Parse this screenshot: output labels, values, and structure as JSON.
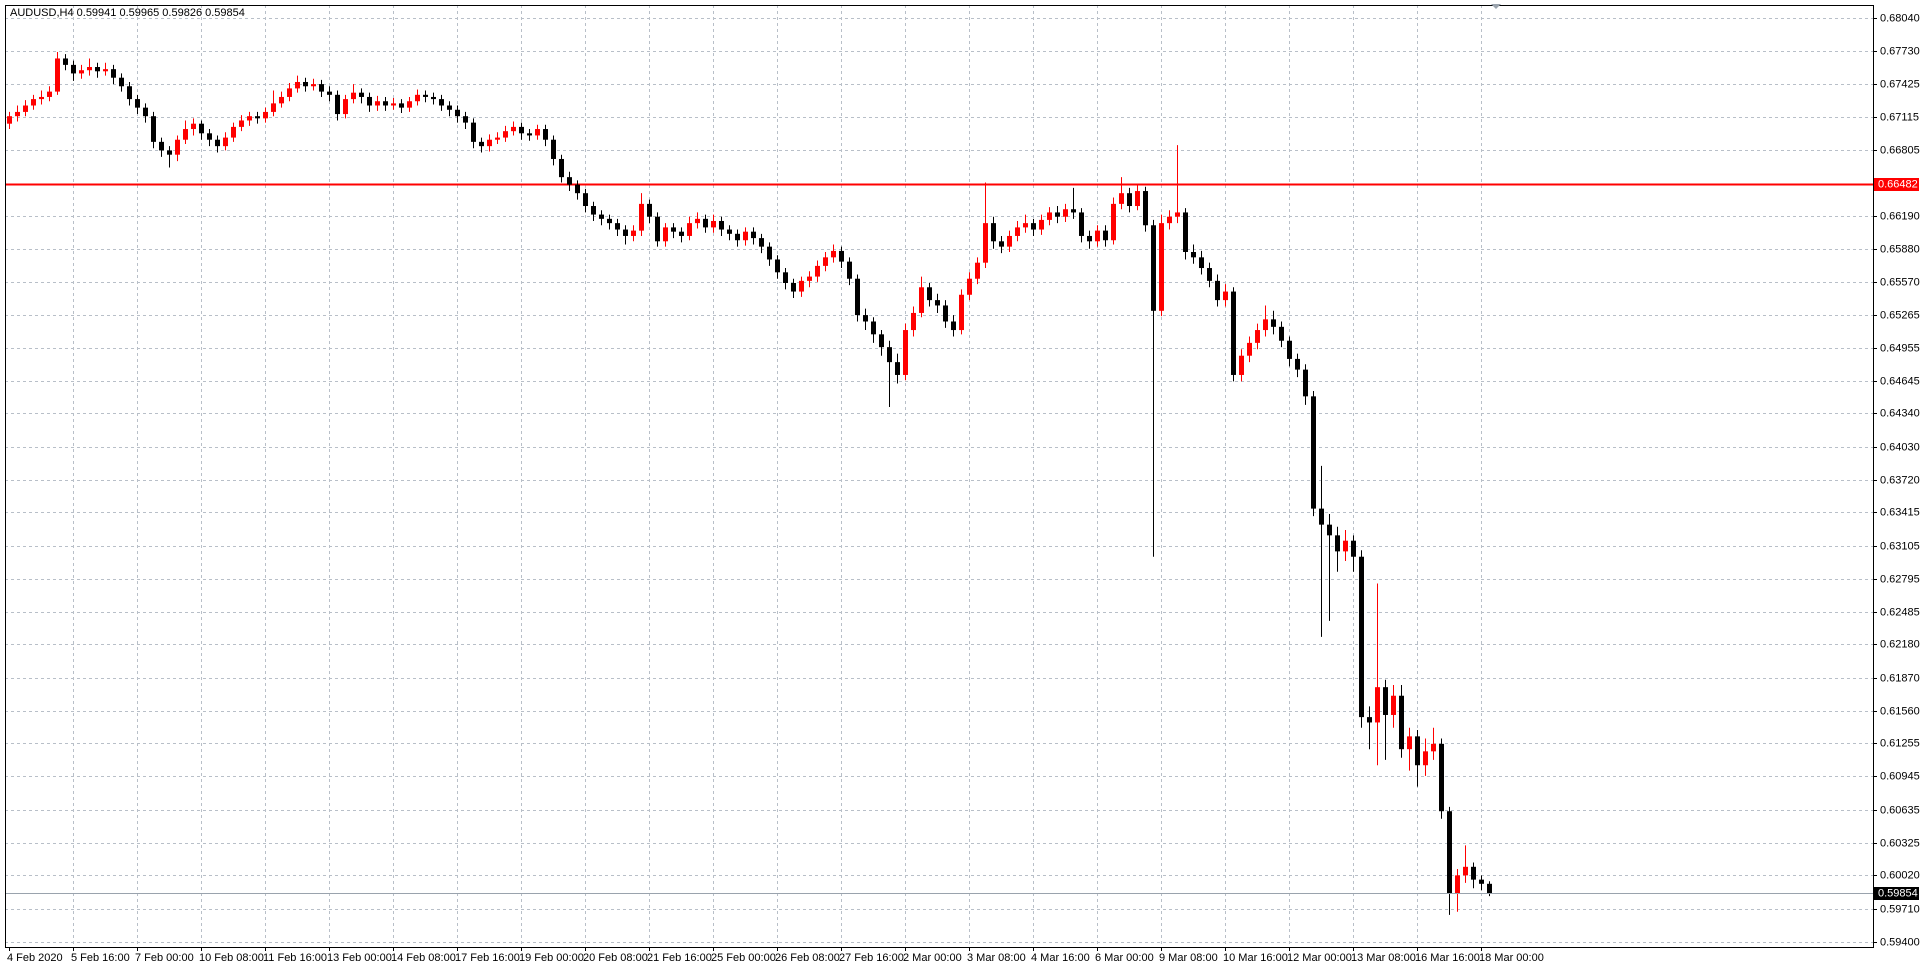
{
  "chart_data": {
    "type": "candlestick",
    "symbol": "AUDUSD,H4",
    "up_color": "#ff0000",
    "down_color": "#000000",
    "grid": true,
    "ylim": [
      0.5935,
      0.6816
    ],
    "yticks": [
      {
        "value": 0.6804,
        "label": "0.68040"
      },
      {
        "value": 0.6773,
        "label": "0.67730"
      },
      0.67425,
      0.67115,
      0.66805,
      {
        "value": 0.6619,
        "label": "0.66190"
      },
      {
        "value": 0.6588,
        "label": "0.65880"
      },
      {
        "value": 0.6557,
        "label": "0.65570"
      },
      0.65265,
      0.64955,
      0.64645,
      {
        "value": 0.6434,
        "label": "0.64340"
      },
      {
        "value": 0.6403,
        "label": "0.64030"
      },
      {
        "value": 0.6372,
        "label": "0.63720"
      },
      0.63415,
      0.63105,
      0.62795,
      0.62485,
      {
        "value": 0.6218,
        "label": "0.62180"
      },
      {
        "value": 0.6187,
        "label": "0.61870"
      },
      {
        "value": 0.6156,
        "label": "0.61560"
      },
      0.61255,
      0.60945,
      0.60635,
      0.60325,
      {
        "value": 0.6002,
        "label": "0.60020"
      },
      {
        "value": 0.5971,
        "label": "0.59710"
      },
      {
        "value": 0.594,
        "label": "0.59400"
      }
    ],
    "hline": {
      "value": 0.66482,
      "color": "#ff0000"
    },
    "categories": [
      "4 Feb 2020",
      null,
      null,
      null,
      null,
      null,
      null,
      null,
      "5 Feb 16:00",
      null,
      null,
      null,
      null,
      null,
      null,
      null,
      "7 Feb 00:00",
      null,
      null,
      null,
      null,
      null,
      null,
      null,
      "10 Feb 08:00",
      null,
      null,
      null,
      null,
      null,
      null,
      null,
      "11 Feb 16:00",
      null,
      null,
      null,
      null,
      null,
      null,
      null,
      "13 Feb 00:00",
      null,
      null,
      null,
      null,
      null,
      null,
      null,
      "14 Feb 08:00",
      null,
      null,
      null,
      null,
      null,
      null,
      null,
      "17 Feb 16:00",
      null,
      null,
      null,
      null,
      null,
      null,
      null,
      "19 Feb 00:00",
      null,
      null,
      null,
      null,
      null,
      null,
      null,
      "20 Feb 08:00",
      null,
      null,
      null,
      null,
      null,
      null,
      null,
      "21 Feb 16:00",
      null,
      null,
      null,
      null,
      null,
      null,
      null,
      "25 Feb 00:00",
      null,
      null,
      null,
      null,
      null,
      null,
      null,
      "26 Feb 08:00",
      null,
      null,
      null,
      null,
      null,
      null,
      null,
      "27 Feb 16:00",
      null,
      null,
      null,
      null,
      null,
      null,
      null,
      "2 Mar 00:00",
      null,
      null,
      null,
      null,
      null,
      null,
      null,
      "3 Mar 08:00",
      null,
      null,
      null,
      null,
      null,
      null,
      null,
      "4 Mar 16:00",
      null,
      null,
      null,
      null,
      null,
      null,
      null,
      "6 Mar 00:00",
      null,
      null,
      null,
      null,
      null,
      null,
      null,
      "9 Mar 08:00",
      null,
      null,
      null,
      null,
      null,
      null,
      null,
      "10 Mar 16:00",
      null,
      null,
      null,
      null,
      null,
      null,
      null,
      "12 Mar 00:00",
      null,
      null,
      null,
      null,
      null,
      null,
      null,
      "13 Mar 08:00",
      null,
      null,
      null,
      null,
      null,
      null,
      null,
      "16 Mar 16:00",
      null,
      null,
      null,
      null,
      null,
      null,
      null,
      "18 Mar 00:00",
      null
    ],
    "open": [
      0.6705,
      0.6712,
      0.6716,
      0.6722,
      0.6728,
      0.673,
      0.6735,
      0.6766,
      0.676,
      0.6752,
      0.6755,
      0.6758,
      0.6754,
      0.6756,
      0.6748,
      0.674,
      0.6728,
      0.672,
      0.6712,
      0.6688,
      0.668,
      0.6676,
      0.669,
      0.67,
      0.6705,
      0.6696,
      0.669,
      0.6684,
      0.6692,
      0.6702,
      0.6708,
      0.6712,
      0.671,
      0.6716,
      0.6724,
      0.673,
      0.6738,
      0.6744,
      0.674,
      0.6742,
      0.6735,
      0.6732,
      0.6714,
      0.6728,
      0.6734,
      0.673,
      0.6722,
      0.6726,
      0.6722,
      0.6724,
      0.672,
      0.6726,
      0.6732,
      0.673,
      0.6728,
      0.6722,
      0.6718,
      0.6712,
      0.6706,
      0.6688,
      0.6684,
      0.669,
      0.6692,
      0.6698,
      0.6702,
      0.6696,
      0.6694,
      0.67,
      0.669,
      0.6672,
      0.6655,
      0.6648,
      0.664,
      0.6628,
      0.662,
      0.6616,
      0.6612,
      0.6606,
      0.66,
      0.6605,
      0.663,
      0.6618,
      0.6595,
      0.6608,
      0.6604,
      0.66,
      0.6612,
      0.6616,
      0.6608,
      0.6614,
      0.6606,
      0.6602,
      0.6596,
      0.6604,
      0.6598,
      0.659,
      0.6578,
      0.6566,
      0.6556,
      0.6548,
      0.6558,
      0.6562,
      0.6572,
      0.658,
      0.6586,
      0.6576,
      0.656,
      0.6526,
      0.652,
      0.6508,
      0.6496,
      0.6482,
      0.647,
      0.6512,
      0.6528,
      0.6552,
      0.654,
      0.6535,
      0.652,
      0.6512,
      0.6545,
      0.656,
      0.6575,
      0.6612,
      0.6595,
      0.659,
      0.66,
      0.6608,
      0.6612,
      0.6606,
      0.6615,
      0.6622,
      0.6618,
      0.6625,
      0.6622,
      0.66,
      0.6595,
      0.6605,
      0.6596,
      0.663,
      0.664,
      0.6628,
      0.6642,
      0.661,
      0.653,
      0.6612,
      0.6618,
      0.6622,
      0.6585,
      0.658,
      0.657,
      0.6558,
      0.654,
      0.6548,
      0.647,
      0.6488,
      0.65,
      0.6512,
      0.6522,
      0.6515,
      0.6502,
      0.6485,
      0.6475,
      0.645,
      0.6345,
      0.633,
      0.632,
      0.6305,
      0.6315,
      0.63,
      0.615,
      0.6145,
      0.6178,
      0.6152,
      0.617,
      0.612,
      0.6132,
      0.6105,
      0.6118,
      0.6125,
      0.6062,
      0.5985,
      0.6002,
      0.601,
      0.5998,
      0.59941
    ],
    "high": [
      0.6716,
      0.6722,
      0.6727,
      0.6732,
      0.6736,
      0.674,
      0.6772,
      0.677,
      0.6764,
      0.676,
      0.6766,
      0.6762,
      0.6762,
      0.676,
      0.6752,
      0.6744,
      0.6732,
      0.6724,
      0.6716,
      0.6692,
      0.6684,
      0.6694,
      0.6708,
      0.671,
      0.6708,
      0.67,
      0.6694,
      0.6697,
      0.6706,
      0.6713,
      0.6716,
      0.6716,
      0.672,
      0.6736,
      0.6735,
      0.6743,
      0.675,
      0.6748,
      0.6747,
      0.6746,
      0.674,
      0.6736,
      0.6732,
      0.6742,
      0.6738,
      0.6734,
      0.6731,
      0.673,
      0.6729,
      0.6728,
      0.673,
      0.6737,
      0.6736,
      0.6734,
      0.6732,
      0.6726,
      0.6722,
      0.6716,
      0.671,
      0.6692,
      0.6695,
      0.6697,
      0.6703,
      0.6707,
      0.6706,
      0.67,
      0.6704,
      0.6704,
      0.6694,
      0.6676,
      0.666,
      0.6652,
      0.6644,
      0.6632,
      0.6624,
      0.662,
      0.6616,
      0.661,
      0.661,
      0.664,
      0.6634,
      0.6622,
      0.6612,
      0.6612,
      0.6608,
      0.6618,
      0.6622,
      0.662,
      0.662,
      0.6618,
      0.661,
      0.6606,
      0.6608,
      0.6608,
      0.6602,
      0.6594,
      0.6582,
      0.657,
      0.656,
      0.6562,
      0.6567,
      0.6577,
      0.6585,
      0.6592,
      0.659,
      0.658,
      0.6564,
      0.6532,
      0.6524,
      0.6512,
      0.6502,
      0.649,
      0.6518,
      0.6534,
      0.6562,
      0.6556,
      0.6546,
      0.654,
      0.6526,
      0.655,
      0.6566,
      0.658,
      0.665,
      0.6618,
      0.66,
      0.6605,
      0.6614,
      0.662,
      0.6616,
      0.662,
      0.6627,
      0.6628,
      0.663,
      0.6645,
      0.6626,
      0.6605,
      0.661,
      0.661,
      0.6636,
      0.6655,
      0.6645,
      0.6648,
      0.6646,
      0.6615,
      0.662,
      0.6624,
      0.6685,
      0.6626,
      0.6592,
      0.6586,
      0.6575,
      0.6564,
      0.6555,
      0.6552,
      0.6494,
      0.6506,
      0.6518,
      0.6535,
      0.653,
      0.652,
      0.6506,
      0.649,
      0.648,
      0.6455,
      0.6385,
      0.634,
      0.6328,
      0.6325,
      0.632,
      0.6306,
      0.616,
      0.6275,
      0.6185,
      0.618,
      0.618,
      0.614,
      0.6138,
      0.613,
      0.614,
      0.613,
      0.6066,
      0.6008,
      0.603,
      0.6014,
      0.6002,
      0.59965
    ],
    "low": [
      0.67,
      0.6707,
      0.6712,
      0.6718,
      0.6723,
      0.6726,
      0.6732,
      0.6755,
      0.6745,
      0.6747,
      0.675,
      0.6748,
      0.675,
      0.6742,
      0.6735,
      0.6722,
      0.6714,
      0.6706,
      0.6682,
      0.6674,
      0.6664,
      0.667,
      0.6686,
      0.6694,
      0.669,
      0.6684,
      0.6678,
      0.668,
      0.6688,
      0.6698,
      0.6703,
      0.6705,
      0.6706,
      0.6712,
      0.672,
      0.6726,
      0.6734,
      0.6735,
      0.6736,
      0.673,
      0.6726,
      0.6708,
      0.671,
      0.6724,
      0.6724,
      0.6716,
      0.6717,
      0.6717,
      0.6718,
      0.6715,
      0.6716,
      0.6722,
      0.6725,
      0.6723,
      0.6717,
      0.6712,
      0.6706,
      0.67,
      0.6682,
      0.6678,
      0.6679,
      0.6686,
      0.6688,
      0.6694,
      0.669,
      0.6689,
      0.669,
      0.6684,
      0.6666,
      0.665,
      0.6642,
      0.6634,
      0.6622,
      0.6614,
      0.661,
      0.6606,
      0.66,
      0.6592,
      0.6595,
      0.66,
      0.6612,
      0.659,
      0.659,
      0.6598,
      0.6594,
      0.6596,
      0.6607,
      0.6603,
      0.6603,
      0.66,
      0.6596,
      0.659,
      0.6591,
      0.6592,
      0.6584,
      0.6572,
      0.656,
      0.655,
      0.6542,
      0.6543,
      0.6552,
      0.6557,
      0.6567,
      0.6575,
      0.657,
      0.6554,
      0.652,
      0.6512,
      0.65,
      0.6488,
      0.644,
      0.6462,
      0.6465,
      0.6506,
      0.6524,
      0.6534,
      0.6528,
      0.6514,
      0.6506,
      0.6508,
      0.654,
      0.6555,
      0.657,
      0.6588,
      0.6584,
      0.6585,
      0.6595,
      0.6603,
      0.66,
      0.6601,
      0.661,
      0.6612,
      0.6613,
      0.6616,
      0.6594,
      0.6588,
      0.659,
      0.659,
      0.6592,
      0.6625,
      0.6622,
      0.6624,
      0.6604,
      0.63,
      0.6525,
      0.6606,
      0.6612,
      0.6578,
      0.6574,
      0.6564,
      0.6552,
      0.6534,
      0.6534,
      0.6464,
      0.6464,
      0.6482,
      0.6494,
      0.6506,
      0.6508,
      0.6496,
      0.6478,
      0.6468,
      0.6442,
      0.6338,
      0.6225,
      0.624,
      0.6286,
      0.6296,
      0.6286,
      0.614,
      0.612,
      0.6105,
      0.611,
      0.614,
      0.6112,
      0.61,
      0.6085,
      0.6095,
      0.611,
      0.6055,
      0.5965,
      0.5968,
      0.5995,
      0.599,
      0.5988,
      0.59826
    ],
    "close": [
      0.6712,
      0.6716,
      0.6722,
      0.6728,
      0.673,
      0.6735,
      0.6766,
      0.676,
      0.6752,
      0.6755,
      0.6758,
      0.6754,
      0.6756,
      0.6748,
      0.674,
      0.6728,
      0.672,
      0.6712,
      0.6688,
      0.668,
      0.6676,
      0.669,
      0.67,
      0.6705,
      0.6696,
      0.669,
      0.6684,
      0.6692,
      0.6702,
      0.6708,
      0.6712,
      0.671,
      0.6716,
      0.6724,
      0.673,
      0.6738,
      0.6744,
      0.674,
      0.6742,
      0.6735,
      0.6732,
      0.6714,
      0.6728,
      0.6734,
      0.673,
      0.6722,
      0.6726,
      0.6722,
      0.6724,
      0.672,
      0.6726,
      0.6732,
      0.673,
      0.6728,
      0.6722,
      0.6718,
      0.6712,
      0.6706,
      0.6688,
      0.6684,
      0.669,
      0.6692,
      0.6698,
      0.6702,
      0.6696,
      0.6694,
      0.67,
      0.669,
      0.6672,
      0.6655,
      0.6648,
      0.664,
      0.6628,
      0.662,
      0.6616,
      0.6612,
      0.6606,
      0.66,
      0.6605,
      0.663,
      0.6618,
      0.6595,
      0.6608,
      0.6604,
      0.66,
      0.6612,
      0.6616,
      0.6608,
      0.6614,
      0.6606,
      0.6602,
      0.6596,
      0.6604,
      0.6598,
      0.659,
      0.6578,
      0.6566,
      0.6556,
      0.6548,
      0.6558,
      0.6562,
      0.6572,
      0.658,
      0.6586,
      0.6576,
      0.656,
      0.6526,
      0.652,
      0.6508,
      0.6496,
      0.6482,
      0.647,
      0.6512,
      0.6528,
      0.6552,
      0.654,
      0.6535,
      0.652,
      0.6512,
      0.6545,
      0.656,
      0.6575,
      0.6612,
      0.6595,
      0.659,
      0.66,
      0.6608,
      0.6612,
      0.6606,
      0.6615,
      0.6622,
      0.6618,
      0.6625,
      0.6622,
      0.66,
      0.6595,
      0.6605,
      0.6596,
      0.663,
      0.664,
      0.6628,
      0.6642,
      0.661,
      0.653,
      0.6612,
      0.6618,
      0.6622,
      0.6585,
      0.658,
      0.657,
      0.6558,
      0.654,
      0.6548,
      0.647,
      0.6488,
      0.65,
      0.6512,
      0.6522,
      0.6515,
      0.6502,
      0.6485,
      0.6475,
      0.645,
      0.6345,
      0.633,
      0.632,
      0.6305,
      0.6315,
      0.63,
      0.615,
      0.6145,
      0.6178,
      0.6152,
      0.617,
      0.612,
      0.6132,
      0.6105,
      0.6118,
      0.6125,
      0.6062,
      0.5985,
      0.6002,
      0.601,
      0.5998,
      0.59941,
      0.59854
    ]
  }
}
